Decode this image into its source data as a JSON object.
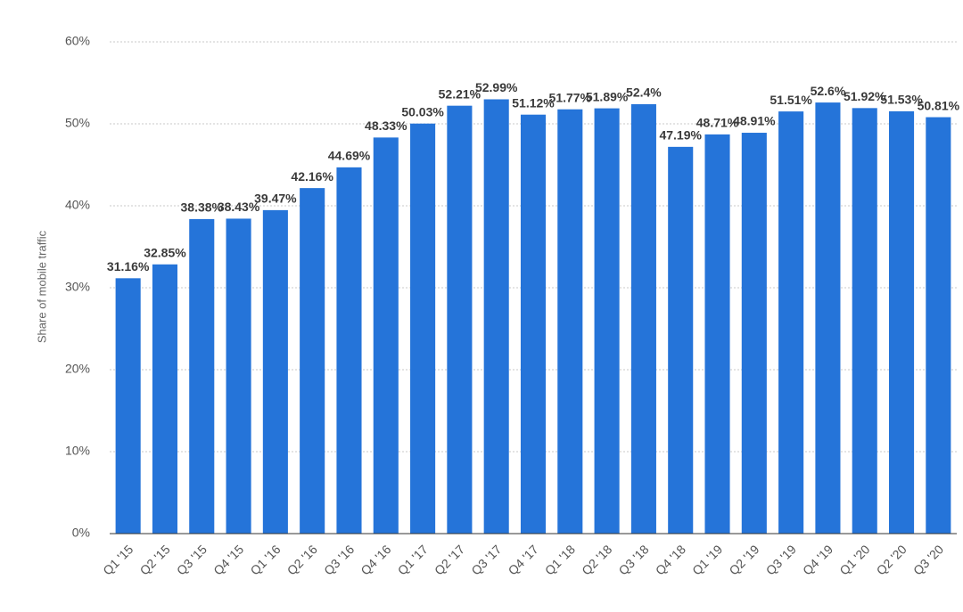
{
  "chart_data": {
    "type": "bar",
    "y_label": "Share of mobile traffic",
    "categories": [
      "Q1 '15",
      "Q2 '15",
      "Q3 '15",
      "Q4 '15",
      "Q1 '16",
      "Q2 '16",
      "Q3 '16",
      "Q4 '16",
      "Q1 '17",
      "Q2 '17",
      "Q3 '17",
      "Q4 '17",
      "Q1 '18",
      "Q2 '18",
      "Q3 '18",
      "Q4 '18",
      "Q1 '19",
      "Q2 '19",
      "Q3 '19",
      "Q4 '19",
      "Q1 '20",
      "Q2 '20",
      "Q3 '20"
    ],
    "values": [
      31.16,
      32.85,
      38.38,
      38.43,
      39.47,
      42.16,
      44.69,
      48.33,
      50.03,
      52.21,
      52.99,
      51.12,
      51.77,
      51.89,
      52.4,
      47.19,
      48.71,
      48.91,
      51.51,
      52.6,
      51.92,
      51.53,
      50.81
    ],
    "value_labels": [
      "31.16%",
      "32.85%",
      "38.38%",
      "38.43%",
      "39.47%",
      "42.16%",
      "44.69%",
      "48.33%",
      "50.03%",
      "52.21%",
      "52.99%",
      "51.12%",
      "51.77%",
      "51.89%",
      "52.4%",
      "47.19%",
      "48.71%",
      "48.91%",
      "51.51%",
      "52.6%",
      "51.92%",
      "51.53%",
      "50.81%"
    ],
    "color": "#2574d9",
    "ylim": [
      0,
      60
    ],
    "yticks": [
      {
        "value": 0,
        "label": "0%"
      },
      {
        "value": 10,
        "label": "10%"
      },
      {
        "value": 20,
        "label": "20%"
      },
      {
        "value": 30,
        "label": "30%"
      },
      {
        "value": 40,
        "label": "40%"
      },
      {
        "value": 50,
        "label": "50%"
      },
      {
        "value": 60,
        "label": "60%"
      }
    ],
    "grid": true
  }
}
